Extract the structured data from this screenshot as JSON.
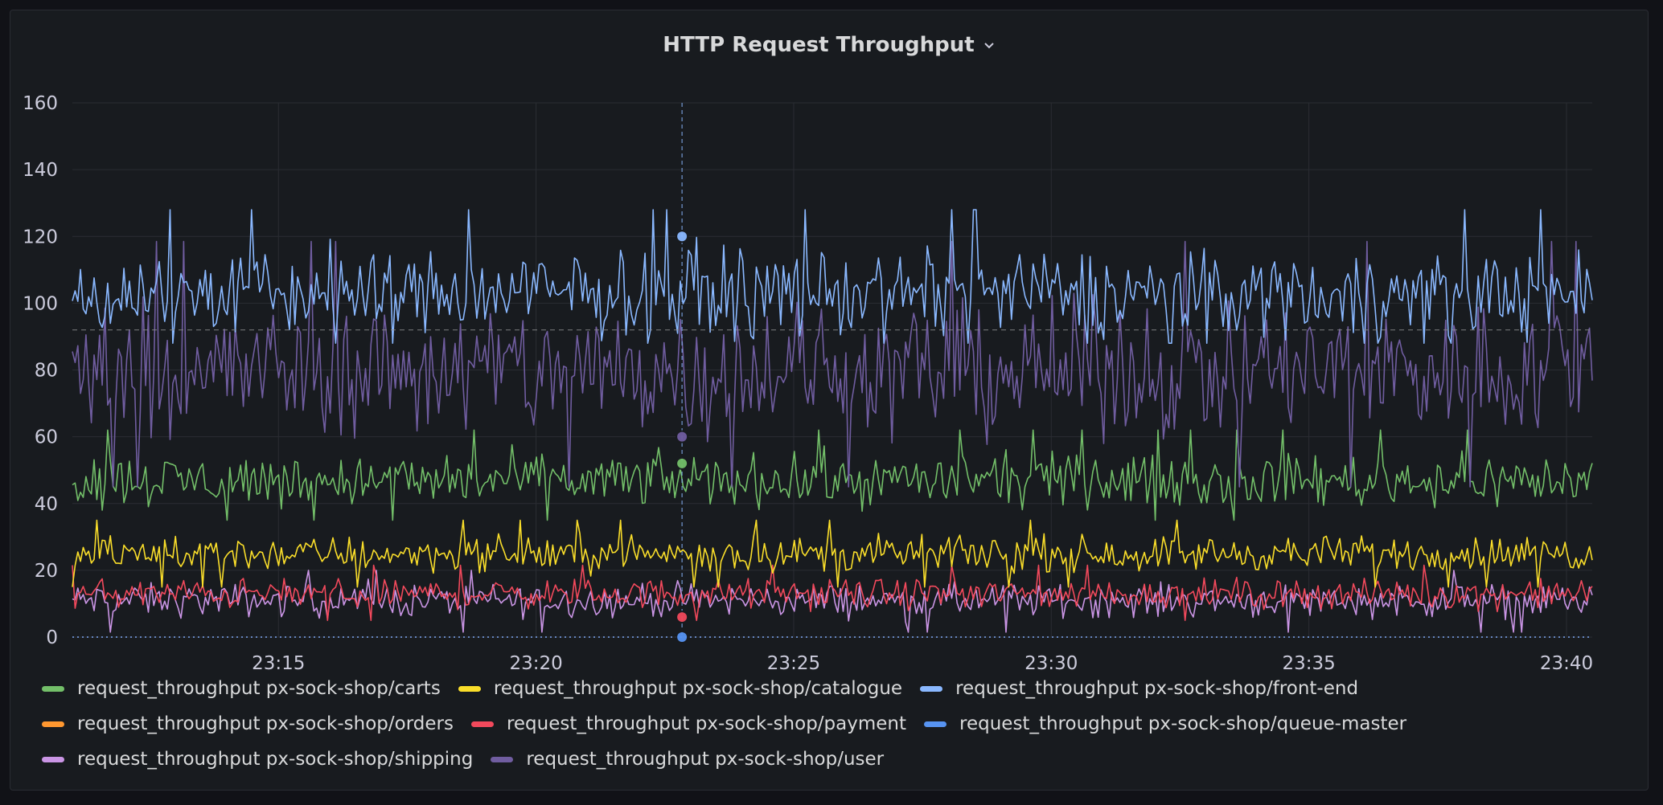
{
  "panel": {
    "title": "HTTP Request Throughput"
  },
  "chart_data": {
    "type": "line",
    "title": "HTTP Request Throughput",
    "xlabel": "",
    "ylabel": "",
    "ylim": [
      0,
      160
    ],
    "yticks": [
      0,
      20,
      40,
      60,
      80,
      100,
      120,
      140,
      160
    ],
    "x_tick_labels": [
      "23:15",
      "23:20",
      "23:25",
      "23:30",
      "23:35",
      "23:40"
    ],
    "x_range": [
      "23:11",
      "23:40:30"
    ],
    "grid": true,
    "legend_position": "bottom",
    "crosshair_time": "23:22:50",
    "threshold_line": 92,
    "series": [
      {
        "name": "request_throughput px-sock-shop/carts",
        "color": "#73bf69",
        "mean": 47,
        "range": [
          35,
          65
        ]
      },
      {
        "name": "request_throughput px-sock-shop/catalogue",
        "color": "#fade2a",
        "mean": 25,
        "range": [
          15,
          35
        ]
      },
      {
        "name": "request_throughput px-sock-shop/front-end",
        "color": "#8ab8ff",
        "mean": 103,
        "range": [
          88,
          138
        ]
      },
      {
        "name": "request_throughput px-sock-shop/orders",
        "color": "#ff9830",
        "mean": 0,
        "range": [
          0,
          0
        ]
      },
      {
        "name": "request_throughput px-sock-shop/payment",
        "color": "#f2495c",
        "mean": 13,
        "range": [
          5,
          22
        ]
      },
      {
        "name": "request_throughput px-sock-shop/queue-master",
        "color": "#5794f2",
        "mean": 0,
        "range": [
          0,
          0
        ]
      },
      {
        "name": "request_throughput px-sock-shop/shipping",
        "color": "#ca95e5",
        "mean": 11,
        "range": [
          1,
          20
        ]
      },
      {
        "name": "request_throughput px-sock-shop/user",
        "color": "#705da0",
        "mean": 80,
        "range": [
          45,
          122
        ]
      }
    ]
  }
}
